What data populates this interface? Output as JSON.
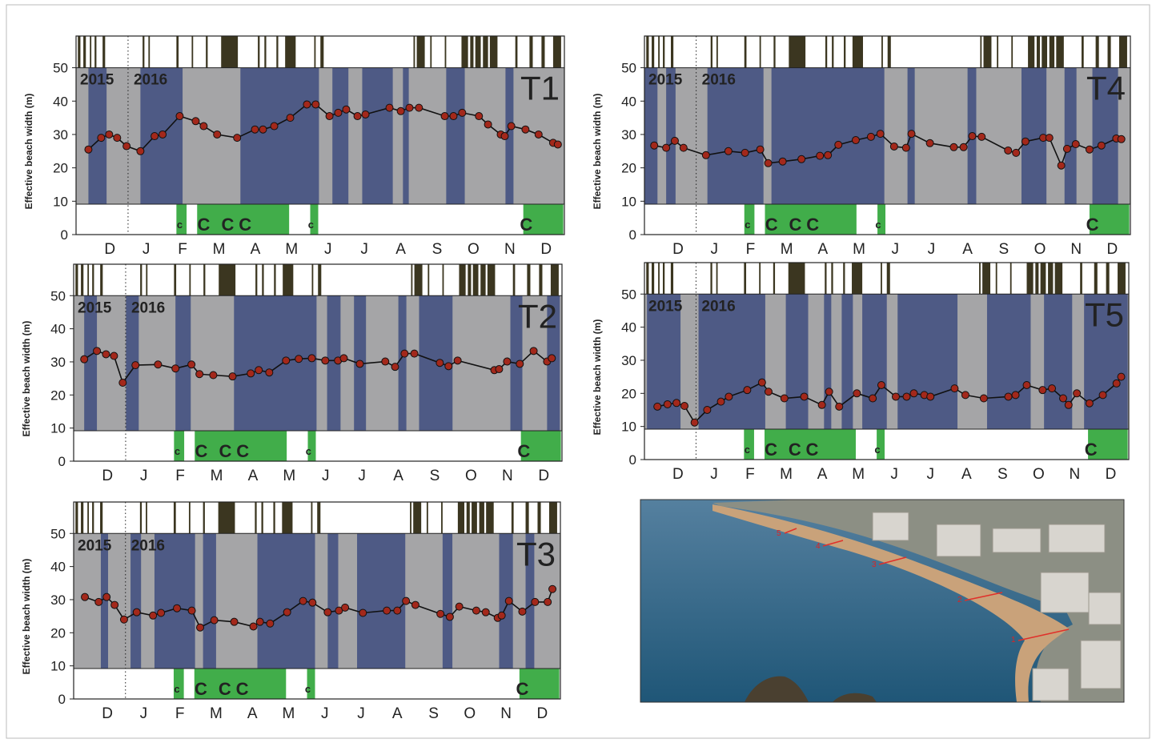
{
  "calendar": {
    "year_boundary": 1.5,
    "events": [
      [
        0.12,
        0.19
      ],
      [
        0.27,
        0.34
      ],
      [
        0.45,
        0.49
      ],
      [
        0.58,
        0.63
      ],
      [
        0.8,
        0.87
      ],
      [
        1.9,
        1.95
      ],
      [
        2.06,
        2.1
      ],
      [
        2.83,
        2.89
      ],
      [
        3.25,
        3.29
      ],
      [
        3.64,
        3.69
      ],
      [
        4.06,
        4.52
      ],
      [
        5.07,
        5.12
      ],
      [
        5.25,
        5.3
      ],
      [
        5.58,
        5.63
      ],
      [
        5.82,
        6.11
      ],
      [
        6.62,
        6.66
      ],
      [
        6.79,
        6.88
      ],
      [
        9.35,
        9.39
      ],
      [
        9.44,
        9.66
      ],
      [
        9.81,
        9.85
      ],
      [
        10.21,
        10.25
      ],
      [
        10.67,
        10.85
      ],
      [
        10.91,
        11.0
      ],
      [
        11.05,
        11.2
      ],
      [
        11.26,
        11.4
      ],
      [
        11.45,
        11.66
      ],
      [
        12.15,
        12.21
      ],
      [
        12.54,
        12.63
      ],
      [
        12.87,
        12.96
      ],
      [
        13.19,
        13.41
      ]
    ],
    "event_color": "#3b3620",
    "closures": [
      [
        2.83,
        3.11
      ],
      [
        3.4,
        5.93
      ],
      [
        6.51,
        6.73
      ],
      [
        12.37,
        13.47
      ]
    ],
    "closure_color": "#41ad4a"
  },
  "chart_data": [
    {
      "type": "line",
      "title": "T1",
      "y_label": "Effective beach width (m)",
      "years": [
        "2015",
        "2016"
      ],
      "xlim": [
        0.07,
        13.5
      ],
      "ylim": [
        0,
        59.5
      ],
      "yticks": [
        0,
        10,
        20,
        30,
        40,
        50
      ],
      "xticks": [
        {
          "value": 1,
          "label": "D"
        },
        {
          "value": 2,
          "label": "J"
        },
        {
          "value": 3,
          "label": "F"
        },
        {
          "value": 4,
          "label": "M"
        },
        {
          "value": 5,
          "label": "A"
        },
        {
          "value": 6,
          "label": "M"
        },
        {
          "value": 7,
          "label": "J"
        },
        {
          "value": 8,
          "label": "J"
        },
        {
          "value": 9,
          "label": "A"
        },
        {
          "value": 10,
          "label": "S"
        },
        {
          "value": 11,
          "label": "O"
        },
        {
          "value": 12,
          "label": "N"
        },
        {
          "value": 13,
          "label": "D"
        }
      ],
      "x": [
        0.41,
        0.76,
        0.98,
        1.2,
        1.46,
        1.84,
        2.23,
        2.45,
        2.92,
        3.36,
        3.58,
        3.95,
        4.5,
        4.99,
        5.21,
        5.52,
        5.96,
        6.42,
        6.66,
        7.04,
        7.28,
        7.5,
        7.81,
        8.03,
        8.69,
        9.0,
        9.24,
        9.5,
        10.21,
        10.45,
        10.69,
        11.15,
        11.4,
        11.75,
        11.86,
        12.04,
        12.43,
        12.79,
        13.19,
        13.32
      ],
      "values": [
        25.5,
        29,
        30,
        29,
        26.5,
        25,
        29.5,
        30,
        35.5,
        34,
        32.5,
        30,
        29,
        31.5,
        31.5,
        32.5,
        35,
        39,
        39,
        35.5,
        36.5,
        37.5,
        35.5,
        36,
        38,
        37,
        38,
        38,
        35.5,
        35.5,
        36.5,
        35.5,
        33,
        30,
        29.5,
        32.5,
        31.5,
        30,
        27.5,
        27
      ],
      "color": "#a3281b",
      "line_color": "#111111",
      "background": "#a5a5a7",
      "band_color": "#4e5a85",
      "bands": [
        [
          0.41,
          0.91
        ],
        [
          1.84,
          3.0
        ],
        [
          4.59,
          6.75
        ],
        [
          7.12,
          7.56
        ],
        [
          7.94,
          8.78
        ],
        [
          9.06,
          9.22
        ],
        [
          10.25,
          10.76
        ],
        [
          11.88,
          12.1
        ]
      ],
      "markers": [
        {
          "x": 2.92,
          "label": "c"
        },
        {
          "x": 3.58,
          "label": "C"
        },
        {
          "x": 4.24,
          "label": "C"
        },
        {
          "x": 4.72,
          "label": "C"
        },
        {
          "x": 6.53,
          "label": "c"
        },
        {
          "x": 12.45,
          "label": "C"
        }
      ]
    },
    {
      "type": "line",
      "title": "T2",
      "y_label": "Effective beach width (m)",
      "years": [
        "2015",
        "2016"
      ],
      "xlim": [
        0.07,
        13.5
      ],
      "ylim": [
        0,
        59.5
      ],
      "yticks": [
        0,
        10,
        20,
        30,
        40,
        50
      ],
      "xticks": [
        {
          "value": 1,
          "label": "D"
        },
        {
          "value": 2,
          "label": "J"
        },
        {
          "value": 3,
          "label": "F"
        },
        {
          "value": 4,
          "label": "M"
        },
        {
          "value": 5,
          "label": "A"
        },
        {
          "value": 6,
          "label": "M"
        },
        {
          "value": 7,
          "label": "J"
        },
        {
          "value": 8,
          "label": "J"
        },
        {
          "value": 9,
          "label": "A"
        },
        {
          "value": 10,
          "label": "S"
        },
        {
          "value": 11,
          "label": "O"
        },
        {
          "value": 12,
          "label": "N"
        },
        {
          "value": 13,
          "label": "D"
        }
      ],
      "x": [
        0.36,
        0.71,
        0.96,
        1.18,
        1.42,
        1.77,
        2.39,
        2.87,
        3.31,
        3.53,
        3.91,
        4.44,
        4.94,
        5.16,
        5.45,
        5.91,
        6.26,
        6.62,
        6.99,
        7.34,
        7.5,
        7.94,
        8.64,
        8.91,
        9.17,
        9.44,
        10.14,
        10.38,
        10.63,
        11.64,
        11.77,
        11.99,
        12.34,
        12.72,
        13.09,
        13.22
      ],
      "values": [
        30.8,
        33.3,
        32.3,
        31.8,
        23.7,
        29,
        29.2,
        28,
        29.2,
        26.3,
        26,
        25.6,
        26.5,
        27.5,
        26.8,
        30.4,
        30.9,
        31.1,
        30.4,
        30.4,
        31.1,
        29.4,
        30.1,
        28.5,
        32.5,
        32.5,
        29.7,
        28.7,
        30.4,
        27.5,
        27.8,
        30.1,
        29.4,
        33.3,
        30.1,
        31.1
      ],
      "color": "#a3281b",
      "line_color": "#111111",
      "background": "#a5a5a7",
      "band_color": "#4e5a85",
      "bands": [
        [
          0.36,
          0.71
        ],
        [
          1.51,
          1.86
        ],
        [
          2.87,
          3.29
        ],
        [
          4.48,
          6.75
        ],
        [
          7.04,
          7.41
        ],
        [
          7.78,
          8.11
        ],
        [
          9.0,
          9.22
        ],
        [
          9.57,
          10.49
        ],
        [
          12.08,
          12.41
        ],
        [
          13.09,
          13.44
        ]
      ],
      "markers": [
        {
          "x": 2.92,
          "label": "c"
        },
        {
          "x": 3.58,
          "label": "C"
        },
        {
          "x": 4.24,
          "label": "C"
        },
        {
          "x": 4.72,
          "label": "C"
        },
        {
          "x": 6.53,
          "label": "c"
        },
        {
          "x": 12.45,
          "label": "C"
        }
      ]
    },
    {
      "type": "line",
      "title": "T3",
      "y_label": "Effective beach width (m)",
      "years": [
        "2015",
        "2016"
      ],
      "xlim": [
        0.07,
        13.5
      ],
      "ylim": [
        0,
        59.5
      ],
      "yticks": [
        0,
        10,
        20,
        30,
        40,
        50
      ],
      "xticks": [
        {
          "value": 1,
          "label": "D"
        },
        {
          "value": 2,
          "label": "J"
        },
        {
          "value": 3,
          "label": "F"
        },
        {
          "value": 4,
          "label": "M"
        },
        {
          "value": 5,
          "label": "A"
        },
        {
          "value": 6,
          "label": "M"
        },
        {
          "value": 7,
          "label": "J"
        },
        {
          "value": 8,
          "label": "J"
        },
        {
          "value": 9,
          "label": "A"
        },
        {
          "value": 10,
          "label": "S"
        },
        {
          "value": 11,
          "label": "O"
        },
        {
          "value": 12,
          "label": "N"
        },
        {
          "value": 13,
          "label": "D"
        }
      ],
      "x": [
        0.38,
        0.76,
        0.98,
        1.2,
        1.46,
        1.81,
        2.26,
        2.48,
        2.92,
        3.33,
        3.56,
        3.95,
        4.5,
        5.03,
        5.21,
        5.49,
        5.96,
        6.4,
        6.66,
        7.08,
        7.39,
        7.56,
        8.05,
        8.71,
        9.0,
        9.24,
        9.5,
        10.19,
        10.45,
        10.71,
        11.18,
        11.44,
        11.77,
        11.88,
        12.08,
        12.45,
        12.8,
        13.15,
        13.28
      ],
      "values": [
        30.8,
        29.3,
        30.8,
        28.4,
        24,
        26.2,
        25.2,
        26,
        27.4,
        26.7,
        21.6,
        23.8,
        23.3,
        21.9,
        23.3,
        22.8,
        26.2,
        29.6,
        29.1,
        26.2,
        26.7,
        27.6,
        26,
        26.7,
        26.7,
        29.6,
        28.4,
        25.7,
        24.8,
        27.9,
        26.7,
        26.2,
        24.5,
        25.2,
        29.6,
        26.4,
        29.3,
        29.3,
        33.2
      ],
      "color": "#a3281b",
      "line_color": "#111111",
      "background": "#a5a5a7",
      "band_color": "#4e5a85",
      "bands": [
        [
          0.82,
          1.02
        ],
        [
          1.64,
          1.93
        ],
        [
          2.3,
          3.42
        ],
        [
          3.64,
          4.0
        ],
        [
          5.14,
          6.73
        ],
        [
          7.08,
          7.37
        ],
        [
          7.89,
          9.22
        ],
        [
          10.25,
          10.52
        ],
        [
          11.81,
          12.19
        ],
        [
          12.54,
          12.78
        ]
      ],
      "markers": [
        {
          "x": 2.92,
          "label": "c"
        },
        {
          "x": 3.58,
          "label": "C"
        },
        {
          "x": 4.24,
          "label": "C"
        },
        {
          "x": 4.72,
          "label": "C"
        },
        {
          "x": 6.53,
          "label": "c"
        },
        {
          "x": 12.45,
          "label": "C"
        }
      ]
    },
    {
      "type": "line",
      "title": "T4",
      "y_label": "Effective beach width (m)",
      "years": [
        "2015",
        "2016"
      ],
      "xlim": [
        0.07,
        13.5
      ],
      "ylim": [
        0,
        59.5
      ],
      "yticks": [
        0,
        10,
        20,
        30,
        40,
        50
      ],
      "xticks": [
        {
          "value": 1,
          "label": "D"
        },
        {
          "value": 2,
          "label": "J"
        },
        {
          "value": 3,
          "label": "F"
        },
        {
          "value": 4,
          "label": "M"
        },
        {
          "value": 5,
          "label": "A"
        },
        {
          "value": 6,
          "label": "M"
        },
        {
          "value": 7,
          "label": "J"
        },
        {
          "value": 8,
          "label": "J"
        },
        {
          "value": 9,
          "label": "A"
        },
        {
          "value": 10,
          "label": "S"
        },
        {
          "value": 11,
          "label": "O"
        },
        {
          "value": 12,
          "label": "N"
        },
        {
          "value": 13,
          "label": "D"
        }
      ],
      "x": [
        0.34,
        0.67,
        0.91,
        1.15,
        1.77,
        2.39,
        2.85,
        3.27,
        3.49,
        3.89,
        4.41,
        4.92,
        5.14,
        5.43,
        5.91,
        6.33,
        6.59,
        6.97,
        7.3,
        7.45,
        7.96,
        8.62,
        8.89,
        9.13,
        9.39,
        10.12,
        10.34,
        10.6,
        11.09,
        11.26,
        11.59,
        11.75,
        11.99,
        12.37,
        12.7,
        13.11,
        13.25
      ],
      "values": [
        26.7,
        26,
        28.1,
        26,
        23.8,
        25,
        24.5,
        25.5,
        21.4,
        21.9,
        22.6,
        23.6,
        23.8,
        26.9,
        28.3,
        29.3,
        30.2,
        26.4,
        26,
        30.2,
        27.4,
        26.2,
        26.2,
        29.5,
        29.3,
        25.2,
        24.5,
        27.9,
        29,
        29,
        20.7,
        25.7,
        27.1,
        25.5,
        26.7,
        28.8,
        28.6
      ],
      "color": "#a3281b",
      "line_color": "#111111",
      "background": "#a5a5a7",
      "band_color": "#4e5a85",
      "bands": [
        [
          0.07,
          0.43
        ],
        [
          0.67,
          0.93
        ],
        [
          1.81,
          3.36
        ],
        [
          3.58,
          6.7
        ],
        [
          7.34,
          7.54
        ],
        [
          9.0,
          9.24
        ],
        [
          10.49,
          11.18
        ],
        [
          11.68,
          12.01
        ],
        [
          12.45,
          13.16
        ]
      ],
      "markers": [
        {
          "x": 2.92,
          "label": "c"
        },
        {
          "x": 3.58,
          "label": "C"
        },
        {
          "x": 4.24,
          "label": "C"
        },
        {
          "x": 4.72,
          "label": "C"
        },
        {
          "x": 6.53,
          "label": "c"
        },
        {
          "x": 12.45,
          "label": "C"
        }
      ]
    },
    {
      "type": "line",
      "title": "T5",
      "y_label": "Effective beach width (m)",
      "years": [
        "2015",
        "2016"
      ],
      "xlim": [
        0.07,
        13.5
      ],
      "ylim": [
        0,
        59.5
      ],
      "yticks": [
        0,
        10,
        20,
        30,
        40,
        50
      ],
      "xticks": [
        {
          "value": 1,
          "label": "D"
        },
        {
          "value": 2,
          "label": "J"
        },
        {
          "value": 3,
          "label": "F"
        },
        {
          "value": 4,
          "label": "M"
        },
        {
          "value": 5,
          "label": "A"
        },
        {
          "value": 6,
          "label": "M"
        },
        {
          "value": 7,
          "label": "J"
        },
        {
          "value": 8,
          "label": "J"
        },
        {
          "value": 9,
          "label": "A"
        },
        {
          "value": 10,
          "label": "S"
        },
        {
          "value": 11,
          "label": "O"
        },
        {
          "value": 12,
          "label": "N"
        },
        {
          "value": 13,
          "label": "D"
        }
      ],
      "x": [
        0.43,
        0.71,
        0.96,
        1.18,
        1.46,
        1.81,
        2.19,
        2.41,
        2.92,
        3.33,
        3.51,
        3.95,
        4.5,
        4.99,
        5.19,
        5.47,
        5.96,
        6.4,
        6.64,
        7.04,
        7.34,
        7.54,
        7.83,
        8.0,
        8.67,
        8.97,
        9.48,
        10.16,
        10.36,
        10.67,
        11.11,
        11.37,
        11.68,
        11.83,
        12.06,
        12.41,
        12.78,
        13.16,
        13.29
      ],
      "values": [
        16,
        16.7,
        17.1,
        16.2,
        11.2,
        15,
        17.5,
        19,
        21,
        23.3,
        20.5,
        18.5,
        19,
        16.5,
        20.5,
        16,
        20,
        18.5,
        22.5,
        19,
        19,
        20,
        19.5,
        19,
        21.5,
        19.5,
        18.5,
        19,
        19.5,
        22.5,
        21,
        21.5,
        18.5,
        16.5,
        20,
        17,
        19.5,
        23,
        25
      ],
      "color": "#a3281b",
      "line_color": "#111111",
      "background": "#a5a5a7",
      "band_color": "#4e5a85",
      "bands": [
        [
          0.14,
          1.07
        ],
        [
          1.57,
          3.42
        ],
        [
          3.99,
          4.61
        ],
        [
          5.05,
          5.25
        ],
        [
          5.54,
          5.85
        ],
        [
          6.11,
          6.79
        ],
        [
          7.09,
          8.75
        ],
        [
          9.57,
          10.78
        ],
        [
          11.15,
          11.93
        ],
        [
          12.26,
          13.47
        ]
      ],
      "markers": [
        {
          "x": 2.92,
          "label": "c"
        },
        {
          "x": 3.58,
          "label": "C"
        },
        {
          "x": 4.24,
          "label": "C"
        },
        {
          "x": 4.72,
          "label": "C"
        },
        {
          "x": 6.53,
          "label": "c"
        },
        {
          "x": 12.45,
          "label": "C"
        }
      ]
    }
  ],
  "photo": {
    "transects": [
      "1",
      "2",
      "3",
      "4",
      "5"
    ]
  }
}
